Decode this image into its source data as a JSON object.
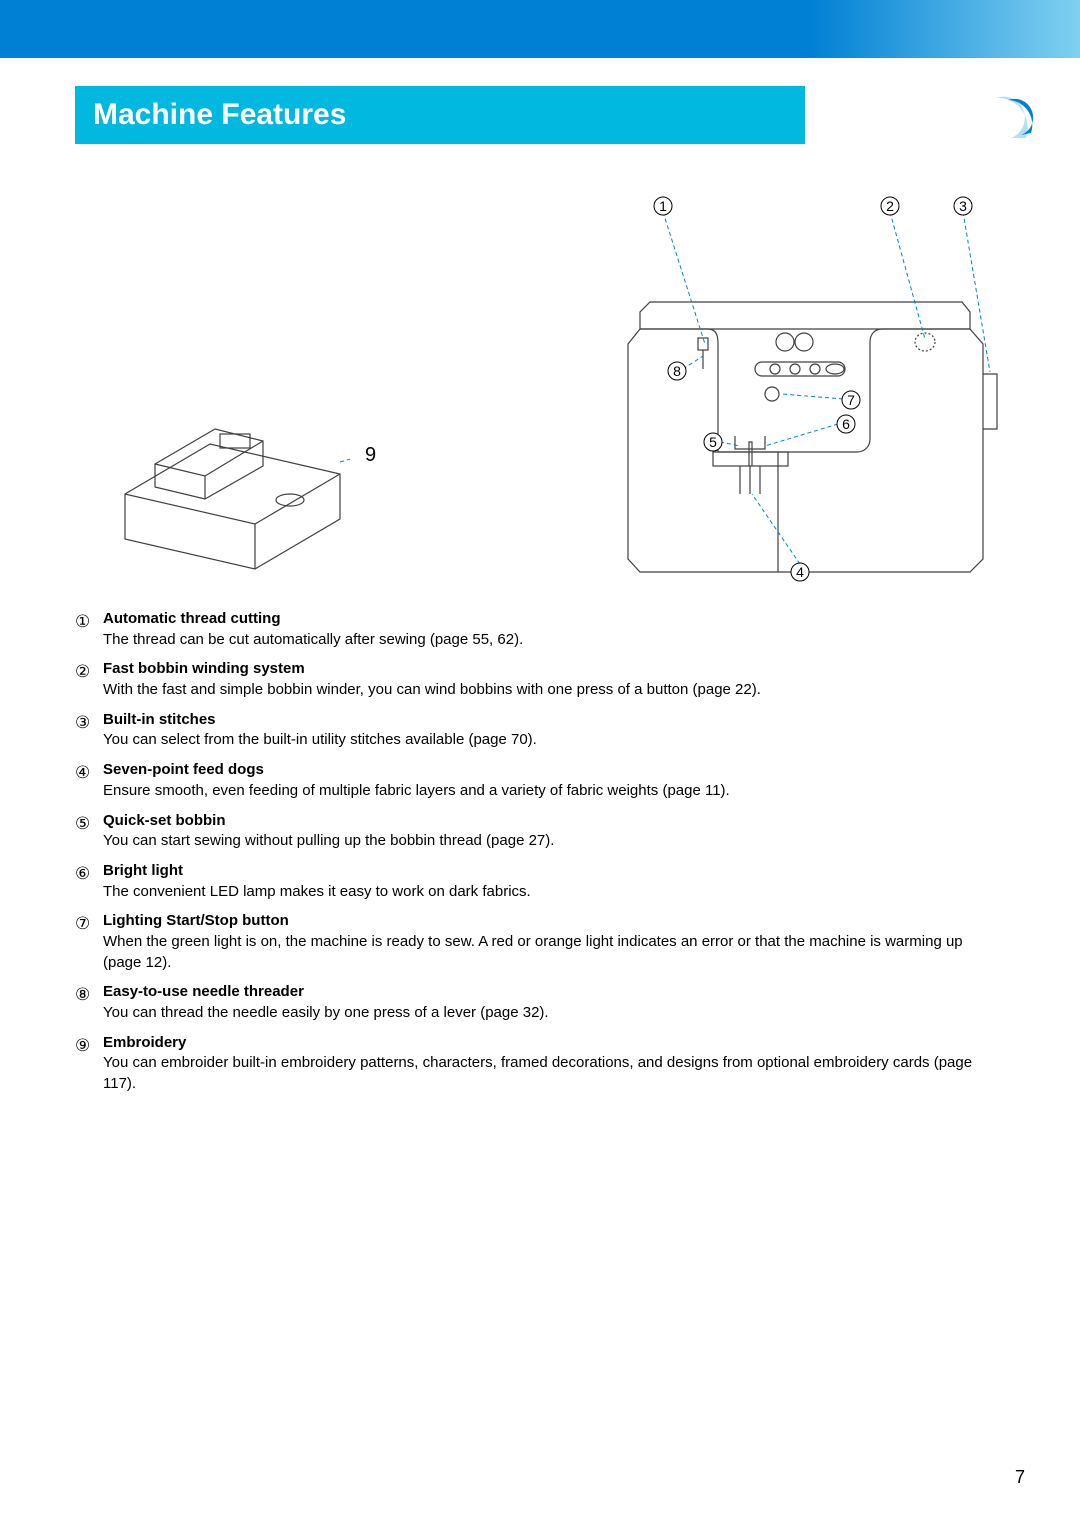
{
  "page": {
    "title": "Machine Features",
    "page_number": "7"
  },
  "colors": {
    "top_bar_start": "#0080d4",
    "top_bar_end": "#80d0f0",
    "title_bg": "#00b8e0",
    "title_text": "#ffffff",
    "body_text": "#000000",
    "diagram_stroke": "#404040",
    "diagram_dash": "#0080d4"
  },
  "diagram": {
    "label_9": "9",
    "callouts": [
      "①",
      "②",
      "③",
      "④",
      "⑤",
      "⑥",
      "⑦",
      "⑧"
    ]
  },
  "features": [
    {
      "num": "①",
      "title": "Automatic thread cutting",
      "desc": "The thread can be cut automatically after sewing (page 55, 62)."
    },
    {
      "num": "②",
      "title": "Fast bobbin winding system",
      "desc": " With the fast and simple bobbin winder, you can wind bobbins with one press of a button (page 22)."
    },
    {
      "num": "③",
      "title": "Built-in stitches",
      "desc": "You can select from the built-in utility stitches available (page 70)."
    },
    {
      "num": "④",
      "title": "Seven-point feed dogs",
      "desc": "Ensure smooth, even feeding of multiple fabric layers and a variety of fabric weights (page 11)."
    },
    {
      "num": "⑤",
      "title": "Quick-set bobbin",
      "desc": "You can start sewing without pulling up the bobbin thread (page 27)."
    },
    {
      "num": "⑥",
      "title": "Bright light",
      "desc": "The convenient LED lamp makes it easy to work on dark fabrics."
    },
    {
      "num": "⑦",
      "title": "Lighting Start/Stop button",
      "desc": "When the green light is on, the machine is ready to sew. A red or orange light indicates an error or that the machine is warming up (page 12)."
    },
    {
      "num": "⑧",
      "title": "Easy-to-use needle threader",
      "desc": "You can thread the needle easily by one press of a lever (page 32)."
    },
    {
      "num": "⑨",
      "title": "Embroidery",
      "desc": "You can embroider built-in embroidery patterns, characters, framed decorations, and designs from optional embroidery cards (page 117)."
    }
  ]
}
